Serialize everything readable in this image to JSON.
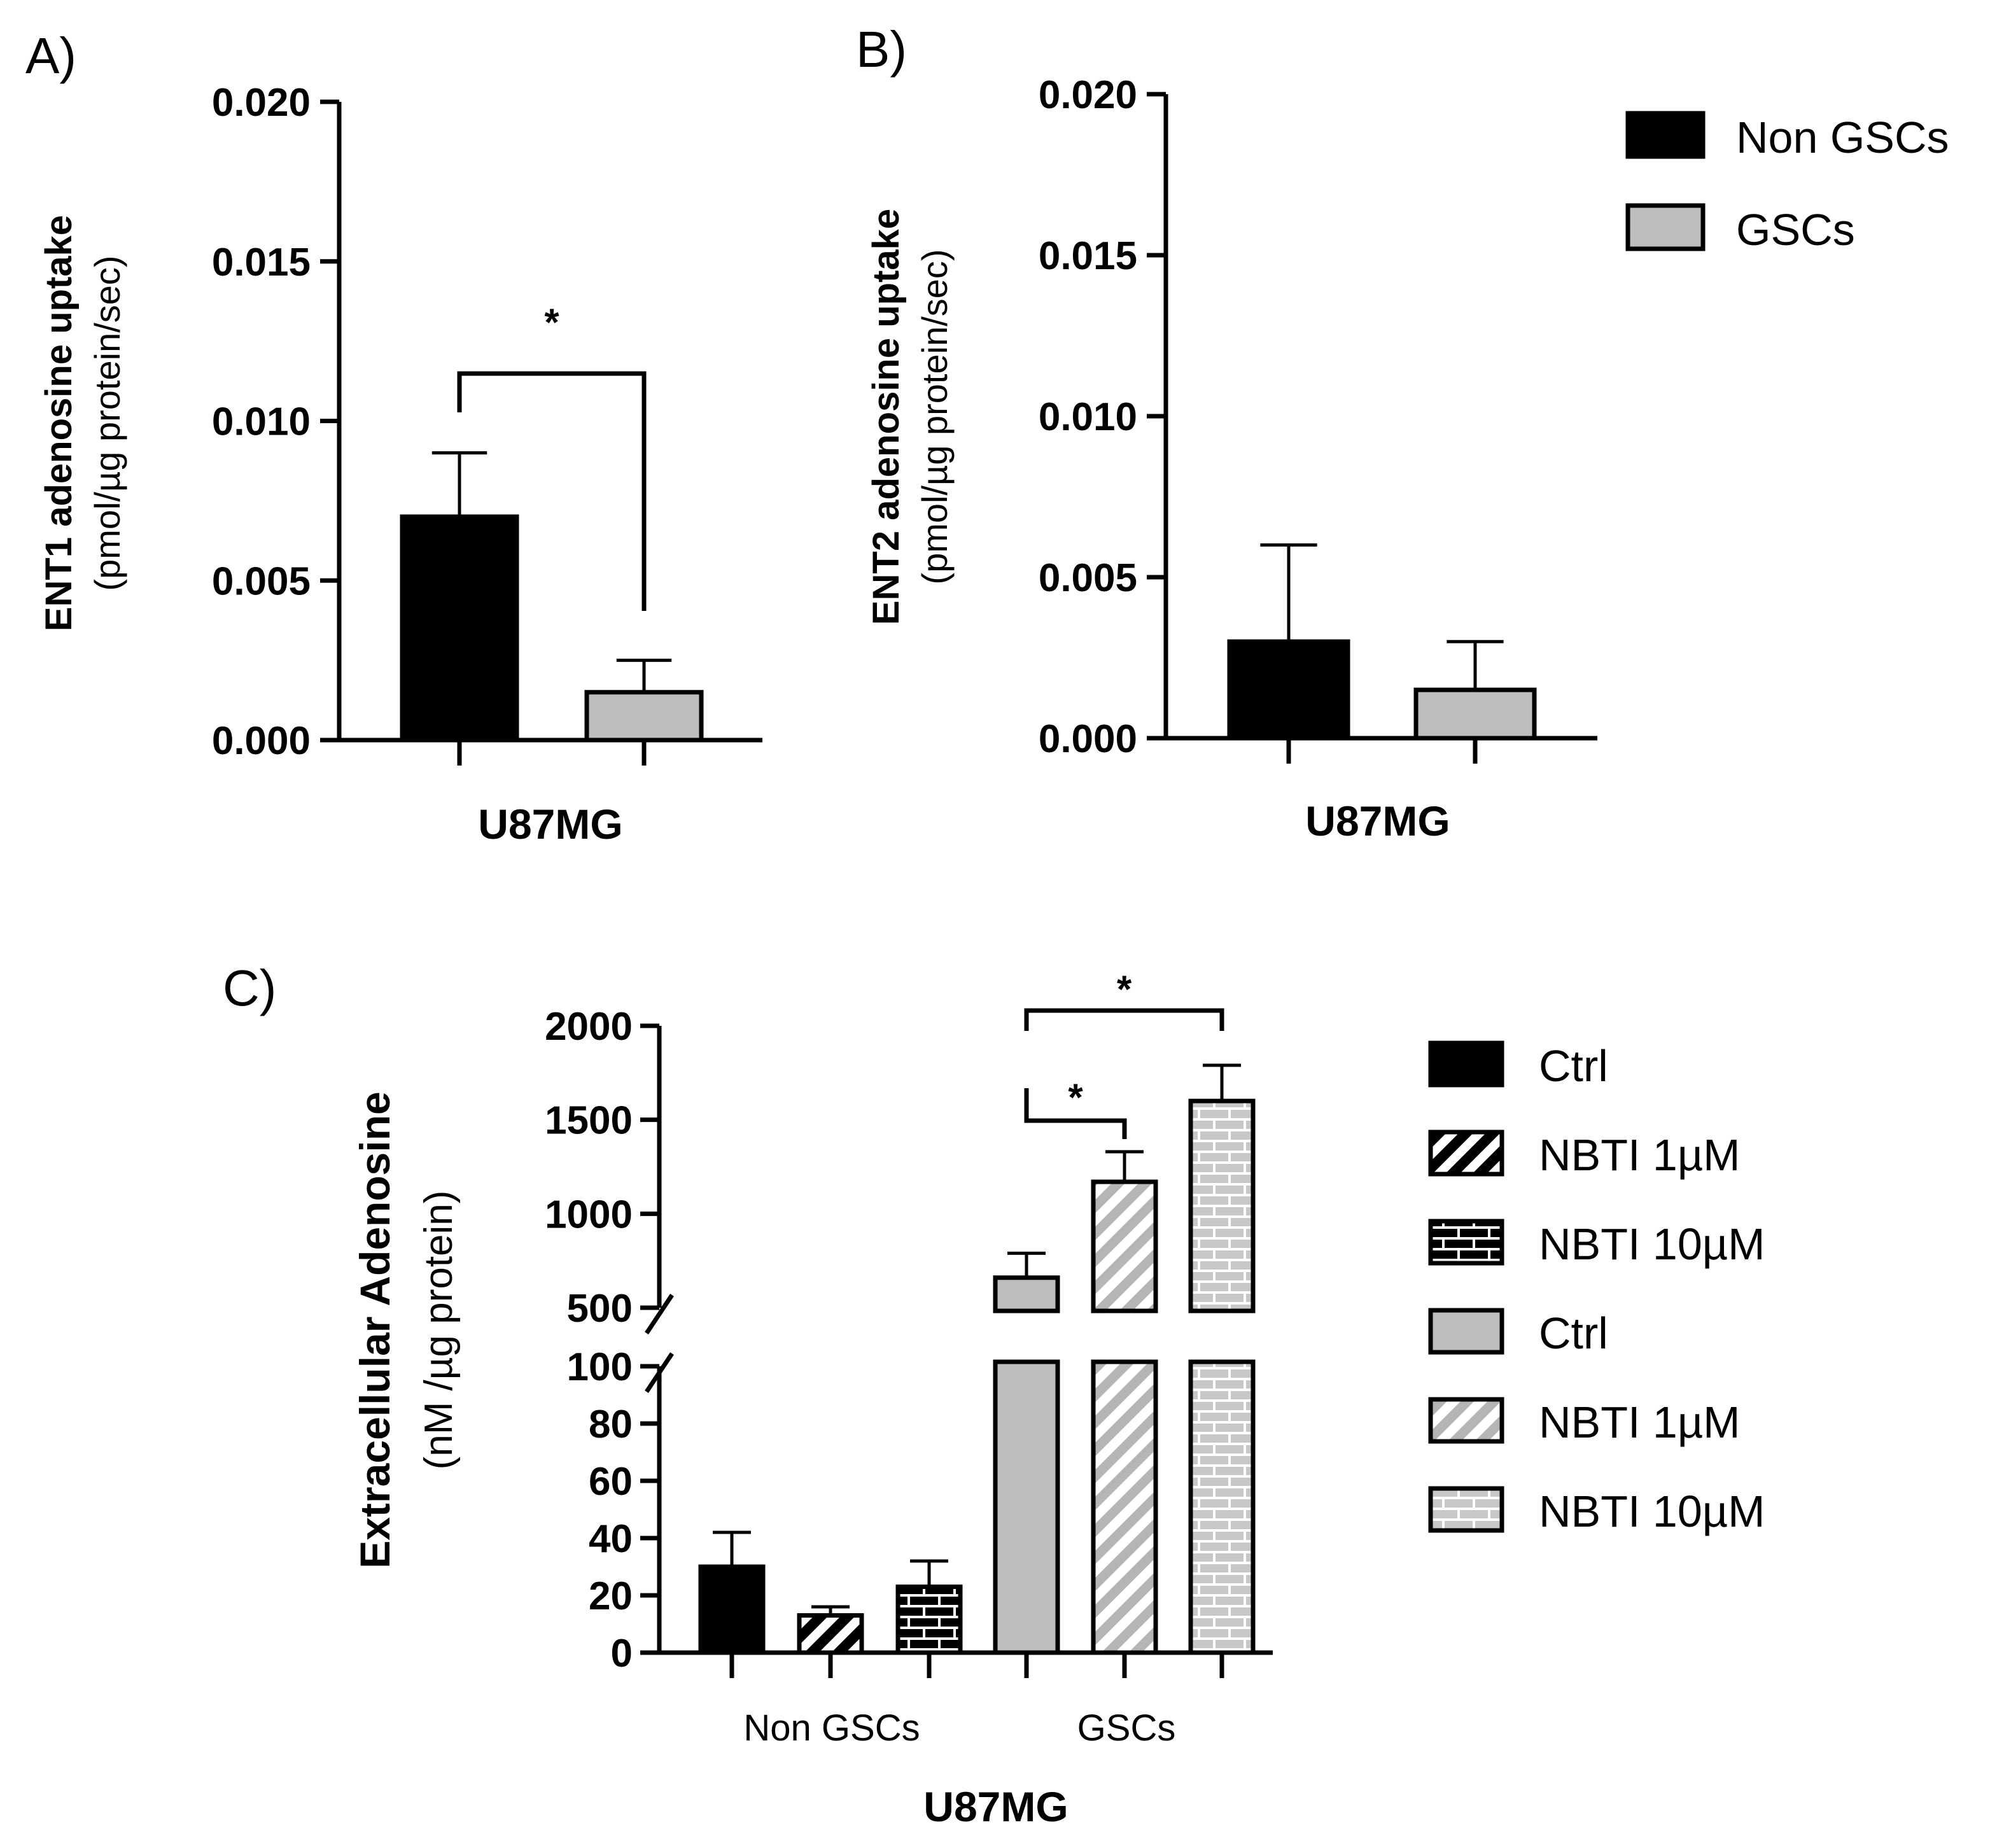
{
  "colors": {
    "non_gscs": "#000000",
    "gscs": "#bdbdbd",
    "axis": "#000000"
  },
  "chart_data": [
    {
      "panel": "A)",
      "type": "bar",
      "ylabel_bold": "ENT1 adenosine uptake",
      "ylabel_unit": "(pmol/µg protein/sec)",
      "xlabel": "U87MG",
      "ylim": [
        0,
        0.02
      ],
      "yticks": [
        "0.000",
        "0.005",
        "0.010",
        "0.015",
        "0.020"
      ],
      "series": [
        {
          "name": "Non GSCs",
          "value": 0.007,
          "error": 0.002
        },
        {
          "name": "GSCs",
          "value": 0.0015,
          "error": 0.001
        }
      ],
      "significance": [
        "*"
      ]
    },
    {
      "panel": "B)",
      "type": "bar",
      "ylabel_bold": "ENT2 adenosine uptake",
      "ylabel_unit": "(pmol/µg protein/sec)",
      "xlabel": "U87MG",
      "ylim": [
        0,
        0.02
      ],
      "yticks": [
        "0.000",
        "0.005",
        "0.010",
        "0.015",
        "0.020"
      ],
      "series": [
        {
          "name": "Non GSCs",
          "value": 0.003,
          "error": 0.003
        },
        {
          "name": "GSCs",
          "value": 0.0015,
          "error": 0.0015
        }
      ]
    },
    {
      "panel": "C)",
      "type": "bar",
      "ylabel_bold": "Extracellular Adenosine",
      "ylabel_unit": "(nM /µg protein)",
      "xlabel": "U87MG",
      "categories": [
        "Non GSCs",
        "GSCs"
      ],
      "y_axis_break": {
        "lower": [
          0,
          100
        ],
        "upper": [
          500,
          2000
        ]
      },
      "yticks_lower": [
        "0",
        "20",
        "40",
        "60",
        "80",
        "100"
      ],
      "yticks_upper": [
        "500",
        "1000",
        "1500",
        "2000"
      ],
      "series": [
        {
          "name": "Ctrl",
          "group": "Non GSCs",
          "value": 30,
          "error": 12
        },
        {
          "name": "NBTI 1µM",
          "group": "Non GSCs",
          "value": 13,
          "error": 3
        },
        {
          "name": "NBTI 10µM",
          "group": "Non GSCs",
          "value": 23,
          "error": 9
        },
        {
          "name": "Ctrl",
          "group": "GSCs",
          "value": 660,
          "error": 130
        },
        {
          "name": "NBTI 1µM",
          "group": "GSCs",
          "value": 1170,
          "error": 160
        },
        {
          "name": "NBTI 10µM",
          "group": "GSCs",
          "value": 1600,
          "error": 190
        }
      ],
      "significance": [
        "*",
        "*"
      ]
    }
  ],
  "legend_ab": [
    "Non GSCs",
    "GSCs"
  ],
  "legend_c": [
    "Ctrl",
    "NBTI 1µM",
    "NBTI 10µM",
    "Ctrl",
    "NBTI 1µM",
    "NBTI 10µM"
  ]
}
